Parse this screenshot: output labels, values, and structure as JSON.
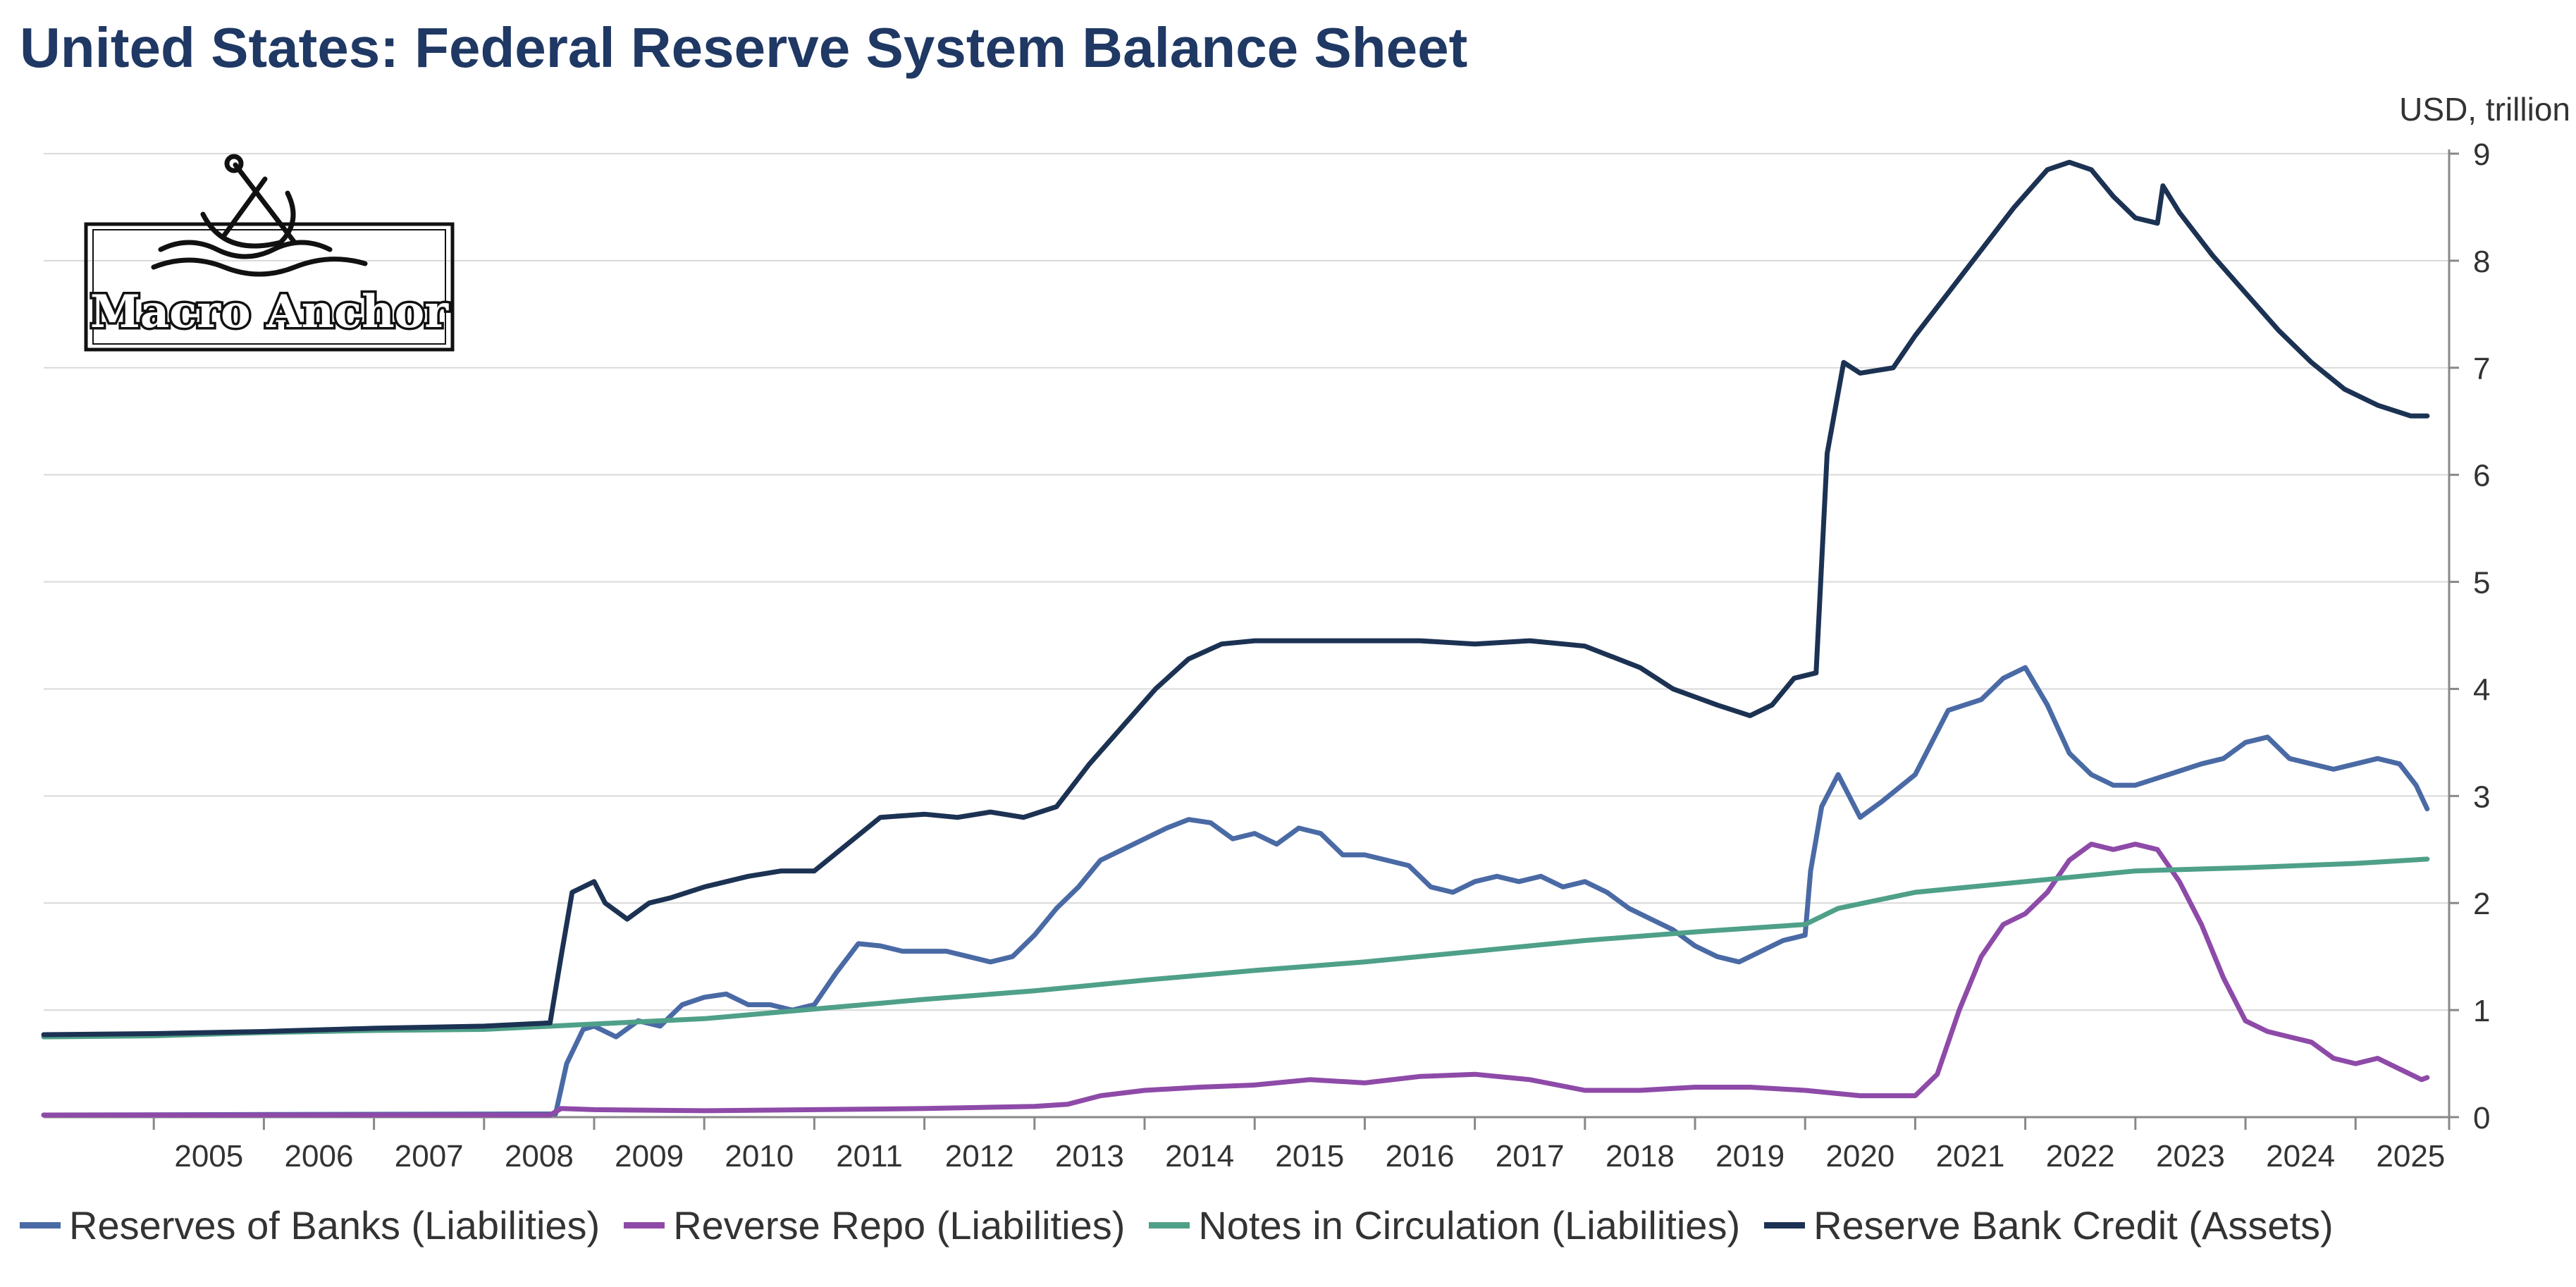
{
  "title": "United States: Federal Reserve System Balance Sheet",
  "unit_label": "USD, trillion",
  "logo_text": "Macro Anchor",
  "chart_data": {
    "type": "line",
    "title": "United States: Federal Reserve System Balance Sheet",
    "ylabel": "USD, trillion",
    "xlim": [
      2004.0,
      2025.85
    ],
    "ylim": [
      0,
      9
    ],
    "y_ticks": [
      0,
      1,
      2,
      3,
      4,
      5,
      6,
      7,
      8,
      9
    ],
    "x_ticks": [
      "2005",
      "2006",
      "2007",
      "2008",
      "2009",
      "2010",
      "2011",
      "2012",
      "2013",
      "2014",
      "2015",
      "2016",
      "2017",
      "2018",
      "2019",
      "2020",
      "2021",
      "2022",
      "2023",
      "2024",
      "2025"
    ],
    "grid": "horizontal",
    "legend_position": "bottom",
    "series": [
      {
        "name": "Reserves of Banks (Liabilities)",
        "color": "#4a6aa5",
        "points": [
          [
            2004.0,
            0.02
          ],
          [
            2008.65,
            0.03
          ],
          [
            2008.75,
            0.5
          ],
          [
            2008.9,
            0.82
          ],
          [
            2009.0,
            0.85
          ],
          [
            2009.2,
            0.75
          ],
          [
            2009.4,
            0.9
          ],
          [
            2009.6,
            0.85
          ],
          [
            2009.8,
            1.05
          ],
          [
            2010.0,
            1.12
          ],
          [
            2010.2,
            1.15
          ],
          [
            2010.4,
            1.05
          ],
          [
            2010.6,
            1.05
          ],
          [
            2010.8,
            1.0
          ],
          [
            2011.0,
            1.05
          ],
          [
            2011.2,
            1.35
          ],
          [
            2011.4,
            1.62
          ],
          [
            2011.6,
            1.6
          ],
          [
            2011.8,
            1.55
          ],
          [
            2012.0,
            1.55
          ],
          [
            2012.2,
            1.55
          ],
          [
            2012.4,
            1.5
          ],
          [
            2012.6,
            1.45
          ],
          [
            2012.8,
            1.5
          ],
          [
            2013.0,
            1.7
          ],
          [
            2013.2,
            1.95
          ],
          [
            2013.4,
            2.15
          ],
          [
            2013.6,
            2.4
          ],
          [
            2013.8,
            2.5
          ],
          [
            2014.0,
            2.6
          ],
          [
            2014.2,
            2.7
          ],
          [
            2014.4,
            2.78
          ],
          [
            2014.6,
            2.75
          ],
          [
            2014.8,
            2.6
          ],
          [
            2015.0,
            2.65
          ],
          [
            2015.2,
            2.55
          ],
          [
            2015.4,
            2.7
          ],
          [
            2015.6,
            2.65
          ],
          [
            2015.8,
            2.45
          ],
          [
            2016.0,
            2.45
          ],
          [
            2016.2,
            2.4
          ],
          [
            2016.4,
            2.35
          ],
          [
            2016.6,
            2.15
          ],
          [
            2016.8,
            2.1
          ],
          [
            2017.0,
            2.2
          ],
          [
            2017.2,
            2.25
          ],
          [
            2017.4,
            2.2
          ],
          [
            2017.6,
            2.25
          ],
          [
            2017.8,
            2.15
          ],
          [
            2018.0,
            2.2
          ],
          [
            2018.2,
            2.1
          ],
          [
            2018.4,
            1.95
          ],
          [
            2018.6,
            1.85
          ],
          [
            2018.8,
            1.75
          ],
          [
            2019.0,
            1.6
          ],
          [
            2019.2,
            1.5
          ],
          [
            2019.4,
            1.45
          ],
          [
            2019.6,
            1.55
          ],
          [
            2019.8,
            1.65
          ],
          [
            2020.0,
            1.7
          ],
          [
            2020.05,
            2.3
          ],
          [
            2020.15,
            2.9
          ],
          [
            2020.3,
            3.2
          ],
          [
            2020.5,
            2.8
          ],
          [
            2020.7,
            2.95
          ],
          [
            2021.0,
            3.2
          ],
          [
            2021.3,
            3.8
          ],
          [
            2021.6,
            3.9
          ],
          [
            2021.8,
            4.1
          ],
          [
            2022.0,
            4.2
          ],
          [
            2022.2,
            3.85
          ],
          [
            2022.4,
            3.4
          ],
          [
            2022.6,
            3.2
          ],
          [
            2022.8,
            3.1
          ],
          [
            2023.0,
            3.1
          ],
          [
            2023.3,
            3.2
          ],
          [
            2023.6,
            3.3
          ],
          [
            2023.8,
            3.35
          ],
          [
            2024.0,
            3.5
          ],
          [
            2024.2,
            3.55
          ],
          [
            2024.4,
            3.35
          ],
          [
            2024.6,
            3.3
          ],
          [
            2024.8,
            3.25
          ],
          [
            2025.0,
            3.3
          ],
          [
            2025.2,
            3.35
          ],
          [
            2025.4,
            3.3
          ],
          [
            2025.55,
            3.1
          ],
          [
            2025.65,
            2.88
          ]
        ]
      },
      {
        "name": "Reverse Repo (Liabilities)",
        "color": "#8e4aa8",
        "points": [
          [
            2004.0,
            0.02
          ],
          [
            2008.6,
            0.02
          ],
          [
            2008.7,
            0.08
          ],
          [
            2009.0,
            0.07
          ],
          [
            2010.0,
            0.06
          ],
          [
            2011.0,
            0.07
          ],
          [
            2012.0,
            0.08
          ],
          [
            2013.0,
            0.1
          ],
          [
            2013.3,
            0.12
          ],
          [
            2013.6,
            0.2
          ],
          [
            2014.0,
            0.25
          ],
          [
            2014.5,
            0.28
          ],
          [
            2015.0,
            0.3
          ],
          [
            2015.5,
            0.35
          ],
          [
            2016.0,
            0.32
          ],
          [
            2016.5,
            0.38
          ],
          [
            2017.0,
            0.4
          ],
          [
            2017.5,
            0.35
          ],
          [
            2018.0,
            0.25
          ],
          [
            2018.5,
            0.25
          ],
          [
            2019.0,
            0.28
          ],
          [
            2019.5,
            0.28
          ],
          [
            2020.0,
            0.25
          ],
          [
            2020.5,
            0.2
          ],
          [
            2021.0,
            0.2
          ],
          [
            2021.2,
            0.4
          ],
          [
            2021.4,
            1.0
          ],
          [
            2021.6,
            1.5
          ],
          [
            2021.8,
            1.8
          ],
          [
            2022.0,
            1.9
          ],
          [
            2022.2,
            2.1
          ],
          [
            2022.4,
            2.4
          ],
          [
            2022.6,
            2.55
          ],
          [
            2022.8,
            2.5
          ],
          [
            2023.0,
            2.55
          ],
          [
            2023.2,
            2.5
          ],
          [
            2023.4,
            2.2
          ],
          [
            2023.6,
            1.8
          ],
          [
            2023.8,
            1.3
          ],
          [
            2024.0,
            0.9
          ],
          [
            2024.2,
            0.8
          ],
          [
            2024.4,
            0.75
          ],
          [
            2024.6,
            0.7
          ],
          [
            2024.8,
            0.55
          ],
          [
            2025.0,
            0.5
          ],
          [
            2025.2,
            0.55
          ],
          [
            2025.4,
            0.45
          ],
          [
            2025.6,
            0.35
          ],
          [
            2025.65,
            0.37
          ]
        ]
      },
      {
        "name": "Notes in Circulation (Liabilities)",
        "color": "#4fa088",
        "points": [
          [
            2004.0,
            0.75
          ],
          [
            2005.0,
            0.76
          ],
          [
            2006.0,
            0.79
          ],
          [
            2007.0,
            0.81
          ],
          [
            2008.0,
            0.82
          ],
          [
            2009.0,
            0.87
          ],
          [
            2010.0,
            0.92
          ],
          [
            2011.0,
            1.01
          ],
          [
            2012.0,
            1.1
          ],
          [
            2013.0,
            1.18
          ],
          [
            2014.0,
            1.28
          ],
          [
            2015.0,
            1.37
          ],
          [
            2016.0,
            1.45
          ],
          [
            2017.0,
            1.55
          ],
          [
            2018.0,
            1.65
          ],
          [
            2019.0,
            1.73
          ],
          [
            2020.0,
            1.8
          ],
          [
            2020.3,
            1.95
          ],
          [
            2021.0,
            2.1
          ],
          [
            2022.0,
            2.2
          ],
          [
            2023.0,
            2.3
          ],
          [
            2024.0,
            2.33
          ],
          [
            2025.0,
            2.37
          ],
          [
            2025.65,
            2.41
          ]
        ]
      },
      {
        "name": "Reserve Bank Credit (Assets)",
        "color": "#1c3253",
        "points": [
          [
            2004.0,
            0.77
          ],
          [
            2005.0,
            0.78
          ],
          [
            2006.0,
            0.8
          ],
          [
            2007.0,
            0.83
          ],
          [
            2008.0,
            0.85
          ],
          [
            2008.6,
            0.88
          ],
          [
            2008.7,
            1.5
          ],
          [
            2008.8,
            2.1
          ],
          [
            2009.0,
            2.2
          ],
          [
            2009.1,
            2.0
          ],
          [
            2009.3,
            1.85
          ],
          [
            2009.5,
            2.0
          ],
          [
            2009.7,
            2.05
          ],
          [
            2010.0,
            2.15
          ],
          [
            2010.4,
            2.25
          ],
          [
            2010.7,
            2.3
          ],
          [
            2011.0,
            2.3
          ],
          [
            2011.3,
            2.55
          ],
          [
            2011.6,
            2.8
          ],
          [
            2012.0,
            2.83
          ],
          [
            2012.3,
            2.8
          ],
          [
            2012.6,
            2.85
          ],
          [
            2012.9,
            2.8
          ],
          [
            2013.2,
            2.9
          ],
          [
            2013.5,
            3.3
          ],
          [
            2013.8,
            3.65
          ],
          [
            2014.1,
            4.0
          ],
          [
            2014.4,
            4.28
          ],
          [
            2014.7,
            4.42
          ],
          [
            2015.0,
            4.45
          ],
          [
            2015.5,
            4.45
          ],
          [
            2016.0,
            4.45
          ],
          [
            2016.5,
            4.45
          ],
          [
            2017.0,
            4.42
          ],
          [
            2017.5,
            4.45
          ],
          [
            2018.0,
            4.4
          ],
          [
            2018.5,
            4.2
          ],
          [
            2018.8,
            4.0
          ],
          [
            2019.2,
            3.85
          ],
          [
            2019.5,
            3.75
          ],
          [
            2019.7,
            3.85
          ],
          [
            2019.9,
            4.1
          ],
          [
            2020.1,
            4.15
          ],
          [
            2020.2,
            6.2
          ],
          [
            2020.35,
            7.05
          ],
          [
            2020.5,
            6.95
          ],
          [
            2020.8,
            7.0
          ],
          [
            2021.0,
            7.3
          ],
          [
            2021.3,
            7.7
          ],
          [
            2021.6,
            8.1
          ],
          [
            2021.9,
            8.5
          ],
          [
            2022.2,
            8.85
          ],
          [
            2022.4,
            8.92
          ],
          [
            2022.6,
            8.85
          ],
          [
            2022.8,
            8.6
          ],
          [
            2023.0,
            8.4
          ],
          [
            2023.2,
            8.35
          ],
          [
            2023.25,
            8.7
          ],
          [
            2023.4,
            8.45
          ],
          [
            2023.7,
            8.05
          ],
          [
            2024.0,
            7.7
          ],
          [
            2024.3,
            7.35
          ],
          [
            2024.6,
            7.05
          ],
          [
            2024.9,
            6.8
          ],
          [
            2025.2,
            6.65
          ],
          [
            2025.5,
            6.55
          ],
          [
            2025.65,
            6.55
          ]
        ]
      }
    ]
  }
}
